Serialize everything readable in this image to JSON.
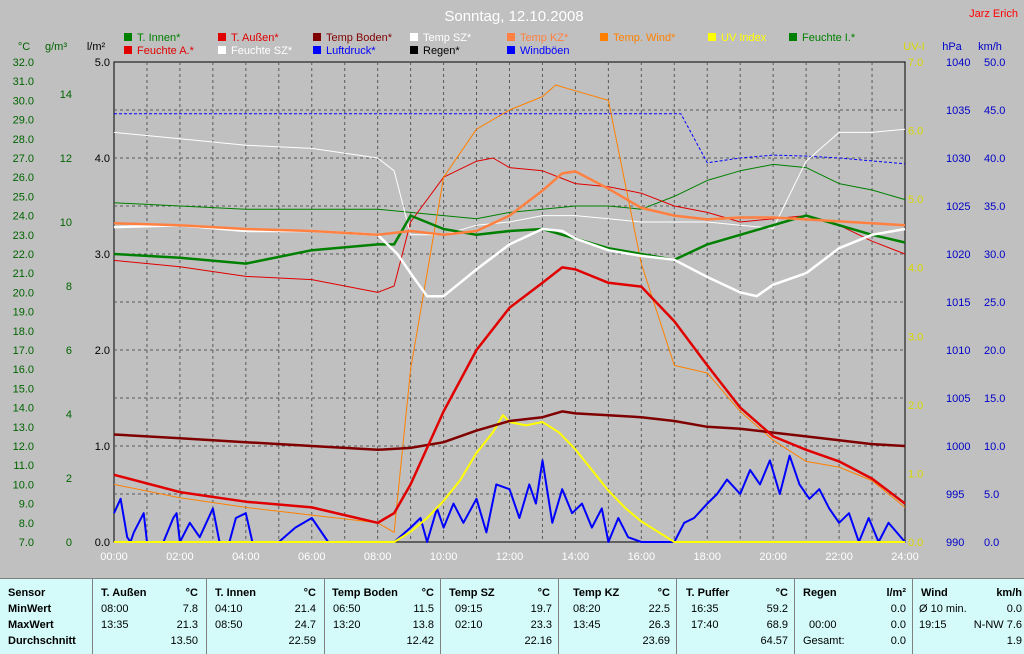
{
  "chart_data": {
    "type": "line",
    "title": "Sonntag, 12.10.2008",
    "author": "Jarz Erich",
    "x_ticks": [
      "00:00",
      "02:00",
      "04:00",
      "06:00",
      "08:00",
      "10:00",
      "12:00",
      "14:00",
      "16:00",
      "18:00",
      "20:00",
      "22:00",
      "24:00"
    ],
    "xlim": [
      0,
      24
    ],
    "axes": {
      "temp": {
        "label": "°C",
        "min": 7,
        "max": 32,
        "ticks": [
          "7.0",
          "8.0",
          "9.0",
          "10.0",
          "11.0",
          "12.0",
          "13.0",
          "14.0",
          "15.0",
          "16.0",
          "17.0",
          "18.0",
          "19.0",
          "20.0",
          "21.0",
          "22.0",
          "23.0",
          "24.0",
          "25.0",
          "26.0",
          "27.0",
          "28.0",
          "29.0",
          "30.0",
          "31.0",
          "32.0"
        ],
        "color": "#006400"
      },
      "hum": {
        "label": "g/m³",
        "min": 0,
        "max": 15,
        "ticks": [
          "0",
          "2",
          "4",
          "6",
          "8",
          "10",
          "12",
          "14"
        ],
        "color": "#006400"
      },
      "rain": {
        "label": "l/m²",
        "min": 0,
        "max": 5,
        "ticks": [
          "0.0",
          "1.0",
          "2.0",
          "3.0",
          "4.0",
          "5.0"
        ],
        "color": "#000000"
      },
      "uv": {
        "label": "UV-I",
        "min": 0,
        "max": 7,
        "ticks": [
          "0.0",
          "1.0",
          "2.0",
          "3.0",
          "4.0",
          "5.0",
          "6.0",
          "7.0"
        ],
        "color": "#d8d800"
      },
      "press": {
        "label": "hPa",
        "min": 990,
        "max": 1040,
        "ticks": [
          "990",
          "995",
          "1000",
          "1005",
          "1010",
          "1015",
          "1020",
          "1025",
          "1030",
          "1035",
          "1040"
        ],
        "color": "#0000c8"
      },
      "wind": {
        "label": "km/h",
        "min": 0,
        "max": 50,
        "ticks": [
          "0.0",
          "5.0",
          "10.0",
          "15.0",
          "20.0",
          "25.0",
          "30.0",
          "35.0",
          "40.0",
          "45.0",
          "50.0"
        ],
        "color": "#0000c8"
      }
    },
    "legend": [
      {
        "name": "T. Innen*",
        "color": "#008000"
      },
      {
        "name": "T. Außen*",
        "color": "#e00000"
      },
      {
        "name": "Temp Boden*",
        "color": "#800000"
      },
      {
        "name": "Temp SZ*",
        "color": "#ffffff"
      },
      {
        "name": "Temp KZ*",
        "color": "#ff8040"
      },
      {
        "name": "Temp. Wind*",
        "color": "#ff8000"
      },
      {
        "name": "UV Index",
        "color": "#ffff00"
      },
      {
        "name": "Feuchte I.*",
        "color": "#008000"
      },
      {
        "name": "Feuchte A.*",
        "color": "#e00000"
      },
      {
        "name": "Feuchte SZ*",
        "color": "#ffffff"
      },
      {
        "name": "Luftdruck*",
        "color": "#0000ff"
      },
      {
        "name": "Regen*",
        "color": "#000000"
      },
      {
        "name": "Windböen",
        "color": "#0000ff"
      }
    ],
    "series": [
      {
        "name": "T. Außen*",
        "axis": "temp",
        "color": "#e00000",
        "width": 2.5,
        "x": [
          0,
          2,
          4,
          6,
          7,
          8,
          8.5,
          9,
          10,
          11,
          12,
          13,
          13.6,
          14,
          15,
          16,
          17,
          18,
          19,
          20,
          21,
          22,
          23,
          24
        ],
        "y": [
          10.5,
          9.6,
          9.1,
          8.8,
          8.4,
          8.0,
          8.5,
          10,
          13.8,
          17,
          19.2,
          20.5,
          21.3,
          21.2,
          20.5,
          20.3,
          18.5,
          16.2,
          14,
          12.5,
          11.8,
          11.2,
          10.3,
          9.0
        ]
      },
      {
        "name": "Temp KZ*",
        "axis": "temp",
        "color": "#ff8040",
        "width": 2.5,
        "x": [
          0,
          2,
          4,
          6,
          8,
          9,
          10,
          11,
          12,
          13,
          13.6,
          14,
          15,
          16,
          17,
          18,
          19,
          20,
          21,
          22,
          23,
          24
        ],
        "y": [
          23.6,
          23.5,
          23.3,
          23.2,
          23.0,
          23.2,
          23.0,
          23.2,
          24.0,
          25.3,
          26.2,
          26.3,
          25.4,
          24.4,
          24.0,
          23.8,
          23.9,
          23.9,
          23.8,
          23.7,
          23.6,
          23.5
        ]
      },
      {
        "name": "Temp SZ*",
        "axis": "temp",
        "color": "#ffffff",
        "width": 2.5,
        "x": [
          0,
          2,
          4,
          6,
          8,
          8.6,
          9,
          9.5,
          10,
          11,
          12,
          13,
          13.6,
          14,
          15,
          16,
          17,
          18,
          19,
          19.5,
          20,
          21,
          22,
          23,
          24
        ],
        "y": [
          23.4,
          23.5,
          23.2,
          23.2,
          23.0,
          22.0,
          21.0,
          19.8,
          19.8,
          21.2,
          22.5,
          23.3,
          23.2,
          22.8,
          22.2,
          21.9,
          21.7,
          20.8,
          20,
          19.8,
          20.4,
          21.0,
          22.3,
          23.0,
          23.3
        ]
      },
      {
        "name": "T. Innen*",
        "axis": "temp",
        "color": "#008000",
        "width": 2.5,
        "x": [
          0,
          2,
          4,
          6,
          8,
          8.5,
          9,
          10,
          11,
          12,
          13,
          14,
          15,
          16,
          17,
          18,
          19,
          20,
          21,
          22,
          23,
          24
        ],
        "y": [
          22.0,
          21.8,
          21.5,
          22.2,
          22.5,
          22.5,
          24.0,
          23.3,
          23.0,
          23.2,
          23.3,
          22.8,
          22.3,
          22.0,
          21.7,
          22.5,
          23.0,
          23.5,
          24.0,
          23.5,
          23.0,
          22.6
        ]
      },
      {
        "name": "Temp Boden*",
        "axis": "temp",
        "color": "#800000",
        "width": 2.5,
        "x": [
          0,
          2,
          4,
          6,
          8,
          9,
          10,
          11,
          12,
          13,
          13.6,
          14,
          15,
          16,
          17,
          18,
          19,
          20,
          21,
          22,
          23,
          24
        ],
        "y": [
          12.6,
          12.4,
          12.2,
          12.0,
          11.8,
          11.9,
          12.2,
          12.8,
          13.3,
          13.5,
          13.8,
          13.7,
          13.6,
          13.5,
          13.3,
          13.0,
          12.9,
          12.7,
          12.5,
          12.3,
          12.1,
          12.0
        ]
      },
      {
        "name": "Temp. Wind*",
        "axis": "temp",
        "color": "#ff8000",
        "width": 1,
        "x": [
          0,
          2,
          4,
          6,
          8,
          8.5,
          9,
          10,
          11,
          12,
          13,
          13.4,
          14,
          15,
          16,
          17,
          18,
          19,
          20,
          21,
          22,
          23,
          24
        ],
        "y": [
          10.0,
          9.3,
          8.8,
          8.4,
          8.0,
          7.5,
          16,
          26,
          28.5,
          29.5,
          30.2,
          30.8,
          30.5,
          30,
          21.5,
          16.2,
          15.8,
          13.8,
          12.3,
          11.2,
          10.9,
          10.2,
          8.8
        ]
      },
      {
        "name": "Feuchte A.*",
        "axis": "hum",
        "color": "#e00000",
        "width": 1,
        "x": [
          0,
          2,
          4,
          6,
          8,
          8.5,
          9,
          10,
          11,
          11.5,
          12,
          13,
          14,
          15,
          16,
          17,
          18,
          19,
          20,
          21,
          22,
          23,
          24
        ],
        "y": [
          8.8,
          8.6,
          8.3,
          8.2,
          7.8,
          8.0,
          10.0,
          11.4,
          11.9,
          12.0,
          11.7,
          11.6,
          11.2,
          11.1,
          10.9,
          10.5,
          10.3,
          10.0,
          10.1,
          10.2,
          9.9,
          9.4,
          9.0
        ]
      },
      {
        "name": "Feuchte I.*",
        "axis": "hum",
        "color": "#008000",
        "width": 1,
        "x": [
          0,
          2,
          4,
          6,
          8,
          9,
          10,
          11,
          12,
          13,
          14,
          15,
          16,
          17,
          18,
          19,
          20,
          21,
          22,
          23,
          24
        ],
        "y": [
          10.6,
          10.5,
          10.4,
          10.4,
          10.4,
          10.3,
          10.2,
          10.1,
          10.3,
          10.4,
          10.5,
          10.5,
          10.4,
          10.8,
          11.3,
          11.6,
          11.8,
          11.7,
          11.2,
          11.0,
          10.7
        ]
      },
      {
        "name": "Feuchte SZ*",
        "axis": "hum",
        "color": "#ffffff",
        "width": 1,
        "x": [
          0,
          2,
          4,
          6,
          8,
          8.5,
          9,
          10,
          11,
          12,
          13,
          14,
          15,
          16,
          17,
          18,
          19,
          20,
          21,
          22,
          23,
          24
        ],
        "y": [
          12.8,
          12.6,
          12.4,
          12.3,
          12.0,
          11.6,
          9.6,
          9.6,
          9.9,
          10.0,
          10.2,
          10.2,
          10.1,
          10.0,
          10.0,
          10.0,
          9.9,
          9.8,
          11.9,
          12.8,
          12.8,
          12.9
        ]
      },
      {
        "name": "Luftdruck*",
        "axis": "press",
        "color": "#0000ff",
        "width": 1,
        "dash": true,
        "x": [
          0,
          17.2,
          18,
          19,
          20,
          21,
          22,
          23,
          24
        ],
        "y": [
          1034.6,
          1034.6,
          1029.5,
          1030.0,
          1030.3,
          1030.2,
          1030.0,
          1029.7,
          1029.4
        ]
      },
      {
        "name": "UV Index",
        "axis": "uv",
        "color": "#ffff00",
        "width": 2,
        "x": [
          0,
          8.5,
          9,
          9.5,
          10,
          10.5,
          11,
          11.5,
          11.8,
          12,
          12.5,
          13,
          13.5,
          14,
          14.5,
          15,
          15.5,
          16,
          16.5,
          17,
          24
        ],
        "y": [
          0,
          0,
          0.15,
          0.35,
          0.6,
          0.9,
          1.3,
          1.6,
          1.85,
          1.75,
          1.7,
          1.75,
          1.6,
          1.35,
          1.05,
          0.75,
          0.5,
          0.3,
          0.15,
          0,
          0
        ]
      },
      {
        "name": "Windböen",
        "axis": "wind",
        "color": "#0000ff",
        "width": 2,
        "x": [
          0,
          0.2,
          0.4,
          0.5,
          0.6,
          0.9,
          1,
          1.5,
          1.8,
          1.9,
          2,
          2.3,
          2.6,
          3,
          3.2,
          3.5,
          3.7,
          4,
          4.2,
          4.5,
          5,
          5.5,
          6,
          6.5,
          7,
          7.5,
          8,
          8.5,
          9,
          9.3,
          9.5,
          9.8,
          10,
          10.3,
          10.6,
          11,
          11.3,
          11.6,
          12,
          12.3,
          12.6,
          12.8,
          13,
          13.3,
          13.6,
          13.9,
          14.2,
          14.5,
          14.8,
          15,
          15.3,
          15.6,
          16,
          16.3,
          16.6,
          17,
          17.3,
          17.6,
          18,
          18.3,
          18.6,
          19,
          19.3,
          19.6,
          19.9,
          20.2,
          20.5,
          20.8,
          21.1,
          21.4,
          21.7,
          22,
          22.3,
          22.6,
          22.9,
          23.2,
          23.5,
          24
        ],
        "y": [
          3,
          4.5,
          0.5,
          0,
          1,
          3,
          0,
          0,
          2.5,
          3,
          0,
          2,
          0.5,
          3.5,
          0,
          0,
          2.5,
          3,
          0,
          0,
          0,
          1.5,
          2.5,
          0,
          0,
          0,
          0,
          0,
          1.5,
          2.5,
          0,
          3.5,
          1.5,
          4,
          2,
          4.5,
          1,
          6,
          5.5,
          2.5,
          6,
          4,
          8.5,
          2,
          5.5,
          3,
          4,
          1.5,
          3.5,
          0,
          2.5,
          0.5,
          0,
          0,
          0,
          0,
          2,
          2.5,
          4,
          5,
          6.5,
          5,
          7.5,
          6,
          8.5,
          5,
          9,
          6,
          4.5,
          5.5,
          3.5,
          2,
          3,
          0,
          2.5,
          0,
          2,
          0
        ]
      }
    ]
  },
  "stats": {
    "col0": {
      "header": "Sensor",
      "row1": "MinWert",
      "row2": "MaxWert",
      "row3": "Durchschnitt"
    },
    "col1": {
      "name": "T. Außen",
      "unit": "°C",
      "min_time": "08:00",
      "min_val": "7.8",
      "max_time": "13:35",
      "max_val": "21.3",
      "avg": "13.50"
    },
    "col2": {
      "name": "T. Innen",
      "unit": "°C",
      "min_time": "04:10",
      "min_val": "21.4",
      "max_time": "08:50",
      "max_val": "24.7",
      "avg": "22.59"
    },
    "col3": {
      "name": "Temp Boden",
      "unit": "°C",
      "min_time": "06:50",
      "min_val": "11.5",
      "max_time": "13:20",
      "max_val": "13.8",
      "avg": "12.42"
    },
    "col4": {
      "name": "Temp SZ",
      "unit": "°C",
      "min_time": "09:15",
      "min_val": "19.7",
      "max_time": "02:10",
      "max_val": "23.3",
      "avg": "22.16"
    },
    "col5": {
      "name": "Temp KZ",
      "unit": "°C",
      "min_time": "08:20",
      "min_val": "22.5",
      "max_time": "13:45",
      "max_val": "26.3",
      "avg": "23.69"
    },
    "col6": {
      "name": "T. Puffer",
      "unit": "°C",
      "min_time": "16:35",
      "min_val": "59.2",
      "max_time": "17:40",
      "max_val": "68.9",
      "avg": "64.57"
    },
    "col7": {
      "name": "Regen",
      "unit": "l/m²",
      "r2_label": "00:00",
      "r2_val": "0.0",
      "r3_label": "Gesamt:",
      "r3_val": "0.0",
      "r1_val": "0.0"
    },
    "col8": {
      "name": "Wind",
      "unit": "km/h",
      "r1_label": "Ø 10 min.",
      "r1_val": "0.0",
      "r2_time": "19:15",
      "r2_val": "N-NW 7.6",
      "r3_val": "1.9"
    }
  }
}
